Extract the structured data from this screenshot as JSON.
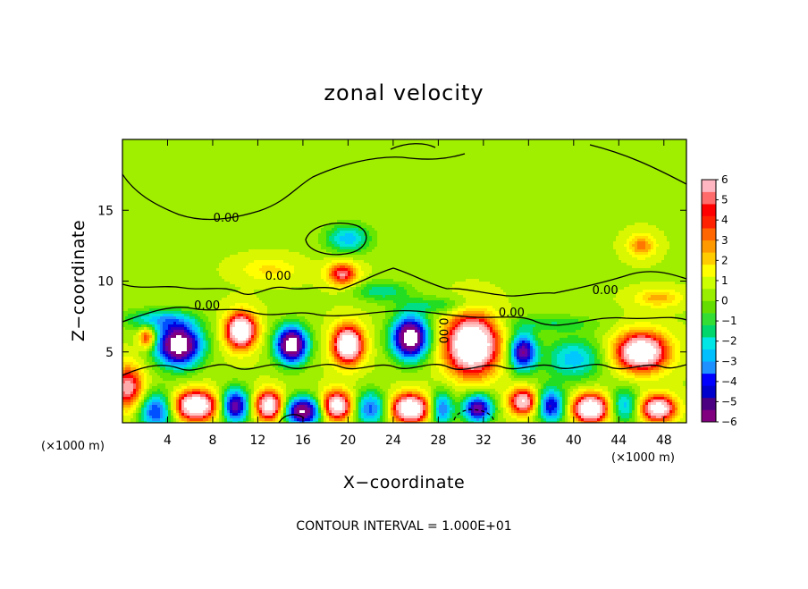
{
  "chart_data": {
    "type": "heatmap",
    "title": "zonal velocity",
    "xlabel": "X−coordinate",
    "ylabel": "Z−coordinate",
    "x_unit_left": "(×1000 m)",
    "x_unit_right": "(×1000 m)",
    "xlim": [
      0,
      50
    ],
    "ylim": [
      0,
      20
    ],
    "x_ticks": [
      "4",
      "8",
      "12",
      "16",
      "20",
      "24",
      "28",
      "32",
      "36",
      "40",
      "44",
      "48"
    ],
    "x_tick_values": [
      4,
      8,
      12,
      16,
      20,
      24,
      28,
      32,
      36,
      40,
      44,
      48
    ],
    "y_ticks": [
      "5",
      "10",
      "15"
    ],
    "y_tick_values": [
      5,
      10,
      15
    ],
    "colorbar": {
      "labels": [
        "6",
        "5",
        "4",
        "3",
        "2",
        "1",
        "0",
        "−1",
        "−2",
        "−3",
        "−4",
        "−5",
        "−6"
      ],
      "min": -6,
      "max": 6,
      "colors": [
        "#800080",
        "#4b0082",
        "#0000cd",
        "#0000ff",
        "#1e90ff",
        "#00bfff",
        "#00e5e5",
        "#00d66b",
        "#33dd33",
        "#66dd00",
        "#99ee00",
        "#ccff00",
        "#ffff00",
        "#ffcc00",
        "#ff9900",
        "#ff6600",
        "#ff2200",
        "#ff0000",
        "#ff6b6b",
        "#ffb6c1"
      ]
    },
    "contour_labels": [
      {
        "text": "0.00",
        "x": 9.2,
        "z": 14.2
      },
      {
        "text": "0.00",
        "x": 13.8,
        "z": 10.1
      },
      {
        "text": "0.00",
        "x": 7.5,
        "z": 8.0
      },
      {
        "text": "0.00",
        "x": 28.1,
        "z": 6.5
      },
      {
        "text": "0.00",
        "x": 34.5,
        "z": 7.5
      },
      {
        "text": "0.00",
        "x": 42.8,
        "z": 9.1
      }
    ],
    "contour_interval_text": "CONTOUR INTERVAL = 1.000E+01",
    "colormap": [
      "#800080",
      "#6a00a8",
      "#3000c0",
      "#0000e0",
      "#0050ff",
      "#1e90ff",
      "#00c8ff",
      "#00e5d5",
      "#00dd88",
      "#22dd22",
      "#66e600",
      "#a0ee00",
      "#d8f700",
      "#ffff00",
      "#ffdd00",
      "#ffaa00",
      "#ff7700",
      "#ff4400",
      "#ff0000",
      "#ff6060",
      "#ffaaaa",
      "#ffc8c8"
    ],
    "field_features": [
      {
        "x": 20,
        "z": 13,
        "amp": -3.0,
        "sx": 2.0,
        "sz": 1.0
      },
      {
        "x": 19.5,
        "z": 10.5,
        "amp": 4.5,
        "sx": 1.3,
        "sz": 0.8
      },
      {
        "x": 46,
        "z": 12.5,
        "amp": 2.5,
        "sx": 1.2,
        "sz": 0.8
      },
      {
        "x": 13,
        "z": 10.8,
        "amp": 1.3,
        "sx": 2.5,
        "sz": 0.8
      },
      {
        "x": 23,
        "z": 9.3,
        "amp": -2.0,
        "sx": 2.5,
        "sz": 0.7
      },
      {
        "x": 3,
        "z": 7.3,
        "amp": -2.5,
        "sx": 3.0,
        "sz": 0.7
      },
      {
        "x": 28,
        "z": 8.3,
        "amp": -1.5,
        "sx": 3.5,
        "sz": 0.6
      },
      {
        "x": 38,
        "z": 7.0,
        "amp": -1.5,
        "sx": 4.0,
        "sz": 0.6
      },
      {
        "x": 47.5,
        "z": 8.8,
        "amp": 2.0,
        "sx": 2.0,
        "sz": 0.6
      },
      {
        "x": 5,
        "z": 5.5,
        "amp": -8.0,
        "sx": 2.0,
        "sz": 1.5
      },
      {
        "x": 10.5,
        "z": 6.5,
        "amp": 8.0,
        "sx": 1.3,
        "sz": 1.2
      },
      {
        "x": 15,
        "z": 5.5,
        "amp": -8.0,
        "sx": 1.4,
        "sz": 1.3
      },
      {
        "x": 20,
        "z": 5.5,
        "amp": 8.0,
        "sx": 1.3,
        "sz": 1.3
      },
      {
        "x": 25.5,
        "z": 6.0,
        "amp": -8.0,
        "sx": 1.6,
        "sz": 1.5
      },
      {
        "x": 31,
        "z": 5.5,
        "amp": 9.0,
        "sx": 2.2,
        "sz": 2.0
      },
      {
        "x": 35.5,
        "z": 5.0,
        "amp": -6.0,
        "sx": 1.2,
        "sz": 1.3
      },
      {
        "x": 40,
        "z": 4.5,
        "amp": -3.0,
        "sx": 2.5,
        "sz": 1.5
      },
      {
        "x": 46,
        "z": 5.0,
        "amp": 8.0,
        "sx": 2.2,
        "sz": 1.3
      },
      {
        "x": 2.2,
        "z": 6.0,
        "amp": 4.0,
        "sx": 0.7,
        "sz": 0.7
      },
      {
        "x": 0.5,
        "z": 2.5,
        "amp": 5.0,
        "sx": 1.3,
        "sz": 1.5
      },
      {
        "x": 3,
        "z": 0.8,
        "amp": -4.5,
        "sx": 1.5,
        "sz": 1.3
      },
      {
        "x": 6.5,
        "z": 1.2,
        "amp": 8.0,
        "sx": 1.8,
        "sz": 1.0
      },
      {
        "x": 10,
        "z": 1.2,
        "amp": -6.0,
        "sx": 1.2,
        "sz": 1.2
      },
      {
        "x": 13,
        "z": 1.2,
        "amp": 7.0,
        "sx": 1.2,
        "sz": 1.0
      },
      {
        "x": 16,
        "z": 0.8,
        "amp": -7.0,
        "sx": 1.6,
        "sz": 1.0
      },
      {
        "x": 19,
        "z": 1.2,
        "amp": 7.0,
        "sx": 1.3,
        "sz": 1.0
      },
      {
        "x": 22,
        "z": 1.0,
        "amp": -4.0,
        "sx": 1.4,
        "sz": 1.2
      },
      {
        "x": 25.5,
        "z": 1.0,
        "amp": 8.0,
        "sx": 1.6,
        "sz": 1.0
      },
      {
        "x": 28.3,
        "z": 1.0,
        "amp": -4.0,
        "sx": 1.0,
        "sz": 1.2
      },
      {
        "x": 31.5,
        "z": 1.0,
        "amp": -6.0,
        "sx": 1.3,
        "sz": 1.0
      },
      {
        "x": 35.5,
        "z": 1.5,
        "amp": 6.0,
        "sx": 1.2,
        "sz": 0.9
      },
      {
        "x": 38,
        "z": 1.2,
        "amp": -5.0,
        "sx": 1.2,
        "sz": 1.2
      },
      {
        "x": 41.5,
        "z": 1.0,
        "amp": 8.0,
        "sx": 1.5,
        "sz": 1.0
      },
      {
        "x": 44.5,
        "z": 1.2,
        "amp": -3.0,
        "sx": 1.2,
        "sz": 1.2
      },
      {
        "x": 47.5,
        "z": 1.0,
        "amp": 7.0,
        "sx": 1.5,
        "sz": 0.9
      }
    ]
  }
}
